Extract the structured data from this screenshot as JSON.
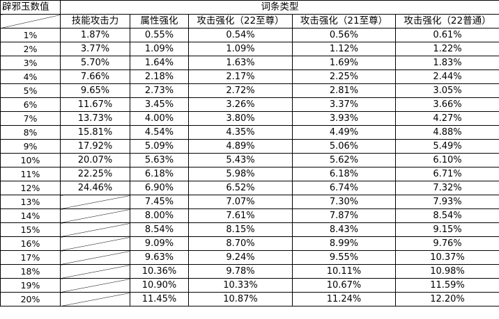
{
  "header": {
    "row_label_title": "辟邪玉数值",
    "group_title": "词条类型",
    "columns": [
      "技能攻击力",
      "属性强化",
      "攻击强化（22至尊）",
      "攻击强化（21至尊）",
      "攻击强化（22普通）"
    ]
  },
  "rows": [
    {
      "label": "1%",
      "values": [
        "1.87%",
        "0.55%",
        "0.54%",
        "0.56%",
        "0.61%"
      ]
    },
    {
      "label": "2%",
      "values": [
        "3.77%",
        "1.09%",
        "1.09%",
        "1.12%",
        "1.22%"
      ]
    },
    {
      "label": "3%",
      "values": [
        "5.70%",
        "1.64%",
        "1.63%",
        "1.69%",
        "1.83%"
      ]
    },
    {
      "label": "4%",
      "values": [
        "7.66%",
        "2.18%",
        "2.17%",
        "2.25%",
        "2.44%"
      ]
    },
    {
      "label": "5%",
      "values": [
        "9.65%",
        "2.73%",
        "2.72%",
        "2.81%",
        "3.05%"
      ]
    },
    {
      "label": "6%",
      "values": [
        "11.67%",
        "3.45%",
        "3.26%",
        "3.37%",
        "3.66%"
      ]
    },
    {
      "label": "7%",
      "values": [
        "13.73%",
        "4.00%",
        "3.80%",
        "3.93%",
        "4.27%"
      ]
    },
    {
      "label": "8%",
      "values": [
        "15.81%",
        "4.54%",
        "4.35%",
        "4.49%",
        "4.88%"
      ]
    },
    {
      "label": "9%",
      "values": [
        "17.92%",
        "5.09%",
        "4.89%",
        "5.06%",
        "5.49%"
      ]
    },
    {
      "label": "10%",
      "values": [
        "20.07%",
        "5.63%",
        "5.43%",
        "5.62%",
        "6.10%"
      ]
    },
    {
      "label": "11%",
      "values": [
        "22.25%",
        "6.18%",
        "5.98%",
        "6.18%",
        "6.71%"
      ]
    },
    {
      "label": "12%",
      "values": [
        "24.46%",
        "6.90%",
        "6.52%",
        "6.74%",
        "7.32%"
      ]
    },
    {
      "label": "13%",
      "values": [
        "",
        "7.45%",
        "7.07%",
        "7.30%",
        "7.93%"
      ]
    },
    {
      "label": "14%",
      "values": [
        "",
        "8.00%",
        "7.61%",
        "7.87%",
        "8.54%"
      ]
    },
    {
      "label": "15%",
      "values": [
        "",
        "8.54%",
        "8.15%",
        "8.43%",
        "9.15%"
      ]
    },
    {
      "label": "16%",
      "values": [
        "",
        "9.09%",
        "8.70%",
        "8.99%",
        "9.76%"
      ]
    },
    {
      "label": "17%",
      "values": [
        "",
        "9.63%",
        "9.24%",
        "9.55%",
        "10.37%"
      ]
    },
    {
      "label": "18%",
      "values": [
        "",
        "10.36%",
        "9.78%",
        "10.11%",
        "10.98%"
      ]
    },
    {
      "label": "19%",
      "values": [
        "",
        "10.90%",
        "10.33%",
        "10.67%",
        "11.59%"
      ]
    },
    {
      "label": "20%",
      "values": [
        "",
        "11.45%",
        "10.87%",
        "11.24%",
        "12.20%"
      ]
    }
  ]
}
